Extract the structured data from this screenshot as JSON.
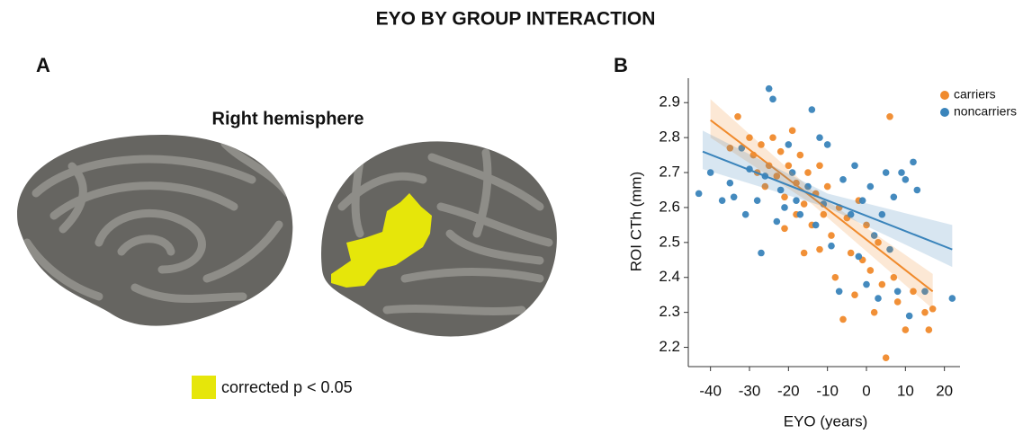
{
  "title": "EYO BY GROUP INTERACTION",
  "panel_a": {
    "label": "A",
    "subtitle": "Right hemisphere",
    "legend": "corrected p < 0.05"
  },
  "chart_data": {
    "type": "scatter",
    "panel_label": "B",
    "xlabel": "EYO (years)",
    "ylabel": "ROI CTh (mm)",
    "xlim": [
      -45,
      24
    ],
    "xticks": [
      -40,
      -30,
      -20,
      -10,
      0,
      10,
      20
    ],
    "ylim": [
      2.15,
      2.97
    ],
    "yticks": [
      2.2,
      2.3,
      2.4,
      2.5,
      2.6,
      2.7,
      2.8,
      2.9
    ],
    "legend": "top-right",
    "series": [
      {
        "name": "carriers",
        "color": "#f08a2c",
        "x": [
          -33,
          -30,
          -29,
          -28,
          -27,
          -26,
          -25,
          -24,
          -23,
          -22,
          -21,
          -20,
          -19,
          -18,
          -18,
          -17,
          -16,
          -15,
          -14,
          -13,
          -12,
          -12,
          -11,
          -10,
          -9,
          -8,
          -7,
          -6,
          -5,
          -4,
          -3,
          -2,
          -1,
          0,
          1,
          2,
          3,
          4,
          5,
          6,
          7,
          8,
          10,
          12,
          15,
          16,
          17,
          -35,
          -21,
          -16
        ],
        "values": [
          2.86,
          2.8,
          2.75,
          2.7,
          2.78,
          2.66,
          2.72,
          2.8,
          2.69,
          2.76,
          2.63,
          2.72,
          2.82,
          2.67,
          2.58,
          2.75,
          2.61,
          2.7,
          2.55,
          2.64,
          2.48,
          2.72,
          2.58,
          2.66,
          2.52,
          2.4,
          2.6,
          2.28,
          2.57,
          2.47,
          2.35,
          2.62,
          2.45,
          2.55,
          2.42,
          2.3,
          2.5,
          2.38,
          2.17,
          2.86,
          2.4,
          2.33,
          2.25,
          2.36,
          2.3,
          2.25,
          2.31,
          2.77,
          2.54,
          2.47
        ],
        "fit": {
          "x": [
            -40,
            -14,
            17
          ],
          "y": [
            2.85,
            2.63,
            2.36
          ],
          "lower": [
            2.8,
            2.61,
            2.31
          ],
          "upper": [
            2.91,
            2.65,
            2.41
          ]
        }
      },
      {
        "name": "noncarriers",
        "color": "#3a84bb",
        "x": [
          -43,
          -40,
          -37,
          -35,
          -34,
          -32,
          -31,
          -30,
          -28,
          -27,
          -26,
          -25,
          -24,
          -23,
          -22,
          -21,
          -20,
          -19,
          -18,
          -17,
          -15,
          -13,
          -12,
          -11,
          -10,
          -9,
          -7,
          -6,
          -4,
          -3,
          -2,
          -1,
          0,
          1,
          2,
          3,
          4,
          5,
          6,
          7,
          8,
          9,
          10,
          11,
          12,
          13,
          15,
          22,
          -14
        ],
        "values": [
          2.64,
          2.7,
          2.62,
          2.67,
          2.63,
          2.77,
          2.58,
          2.71,
          2.62,
          2.47,
          2.69,
          2.94,
          2.91,
          2.56,
          2.65,
          2.6,
          2.78,
          2.7,
          2.62,
          2.58,
          2.66,
          2.55,
          2.8,
          2.61,
          2.78,
          2.49,
          2.36,
          2.68,
          2.58,
          2.72,
          2.46,
          2.62,
          2.38,
          2.66,
          2.52,
          2.34,
          2.58,
          2.7,
          2.48,
          2.63,
          2.36,
          2.7,
          2.68,
          2.29,
          2.73,
          2.65,
          2.36,
          2.34,
          2.88
        ],
        "fit": {
          "x": [
            -42,
            -10,
            22
          ],
          "y": [
            2.76,
            2.62,
            2.48
          ],
          "lower": [
            2.71,
            2.6,
            2.43
          ],
          "upper": [
            2.82,
            2.64,
            2.55
          ]
        }
      }
    ]
  }
}
